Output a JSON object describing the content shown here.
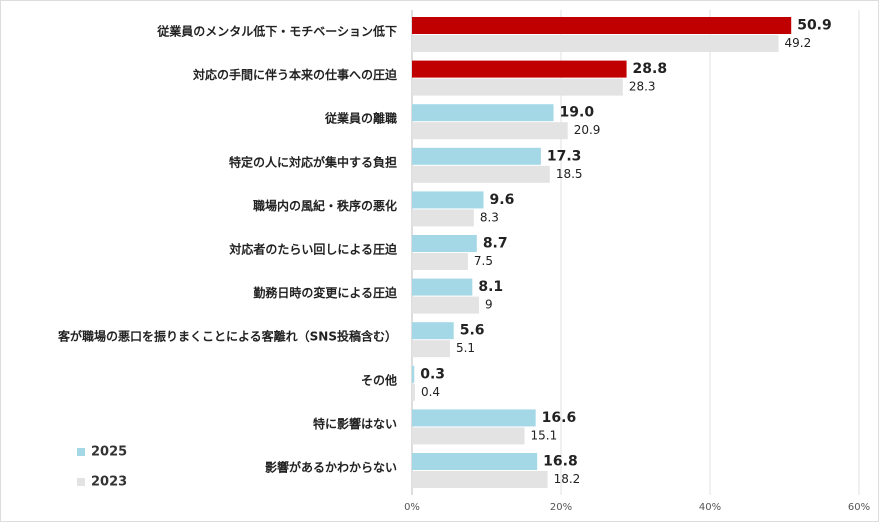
{
  "chart_data": {
    "type": "hbar",
    "categories": [
      "従業員のメンタル低下・モチベーション低下",
      "対応の手間に伴う本来の仕事への圧迫",
      "従業員の離職",
      "特定の人に対応が集中する負担",
      "職場内の風紀・秩序の悪化",
      "対応者のたらい回しによる圧迫",
      "勤務日時の変更による圧迫",
      "客が職場の悪口を振りまくことによる客離れ（SNS投稿含む）",
      "その他",
      "特に影響はない",
      "影響があるかわからない"
    ],
    "series": [
      {
        "name": "2025",
        "color": "#a5d8e6",
        "colors": [
          "#c00000",
          "#c00000",
          "#a5d8e6",
          "#a5d8e6",
          "#a5d8e6",
          "#a5d8e6",
          "#a5d8e6",
          "#a5d8e6",
          "#a5d8e6",
          "#a5d8e6",
          "#a5d8e6"
        ],
        "values": [
          50.9,
          28.8,
          19.0,
          17.3,
          9.6,
          8.7,
          8.1,
          5.6,
          0.3,
          16.6,
          16.8
        ],
        "value_labels": [
          "50.9",
          "28.8",
          "19.0",
          "17.3",
          "9.6",
          "8.7",
          "8.1",
          "5.6",
          "0.3",
          "16.6",
          "16.8"
        ]
      },
      {
        "name": "2023",
        "color": "#e3e3e3",
        "values": [
          49.2,
          28.3,
          20.9,
          18.5,
          8.3,
          7.5,
          9,
          5.1,
          0.4,
          15.1,
          18.2
        ]
      }
    ],
    "xlim": [
      0,
      60
    ],
    "xticks": [
      {
        "value": 0,
        "label": "0%"
      },
      {
        "value": 20,
        "label": "20%"
      },
      {
        "value": 40,
        "label": "40%"
      },
      {
        "value": 60,
        "label": "60%"
      }
    ],
    "grid": true
  }
}
